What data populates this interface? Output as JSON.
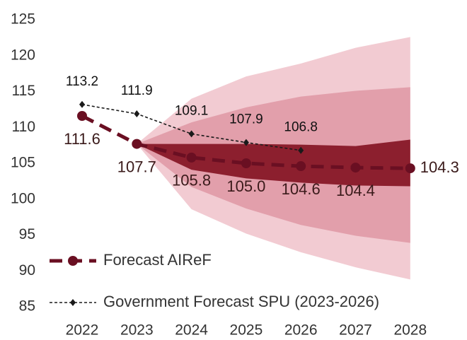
{
  "chart_data": {
    "type": "fan",
    "categories": [
      "2022",
      "2023",
      "2024",
      "2025",
      "2026",
      "2027",
      "2028"
    ],
    "ylim": [
      85,
      125
    ],
    "yticks": [
      85,
      90,
      95,
      100,
      105,
      110,
      115,
      120,
      125
    ],
    "bands": [
      {
        "color": "#f2cbd2",
        "upper": [
          null,
          107.7,
          114.0,
          117.1,
          118.9,
          121.1,
          122.6
        ],
        "lower": [
          null,
          107.7,
          98.6,
          95.2,
          92.6,
          90.5,
          88.8
        ]
      },
      {
        "color": "#e29fab",
        "upper": [
          null,
          107.7,
          110.7,
          112.8,
          114.3,
          115.1,
          115.6
        ],
        "lower": [
          null,
          107.7,
          101.7,
          98.7,
          96.4,
          94.9,
          93.9
        ]
      },
      {
        "color": "#8c1f2e",
        "upper": [
          null,
          107.7,
          107.7,
          107.7,
          107.6,
          107.4,
          108.3
        ],
        "lower": [
          null,
          107.7,
          104.1,
          102.9,
          102.3,
          101.9,
          101.8
        ]
      }
    ],
    "series": [
      {
        "name": "Forecast AIReF",
        "color": "#6a0f22",
        "values": [
          111.6,
          107.7,
          105.8,
          105.0,
          104.6,
          104.4,
          104.3
        ],
        "value_labels": [
          "111.6",
          "107.7",
          "105.8",
          "105.0",
          "104.6",
          "104.4",
          "104.3"
        ]
      },
      {
        "name": "Government Forecast SPU (2023-2026)",
        "color": "#1a1a1a",
        "values": [
          113.2,
          111.9,
          109.1,
          107.9,
          106.8,
          null,
          null
        ],
        "value_labels": [
          "113.2",
          "111.9",
          "109.1",
          "107.9",
          "106.8",
          null,
          null
        ]
      }
    ]
  }
}
